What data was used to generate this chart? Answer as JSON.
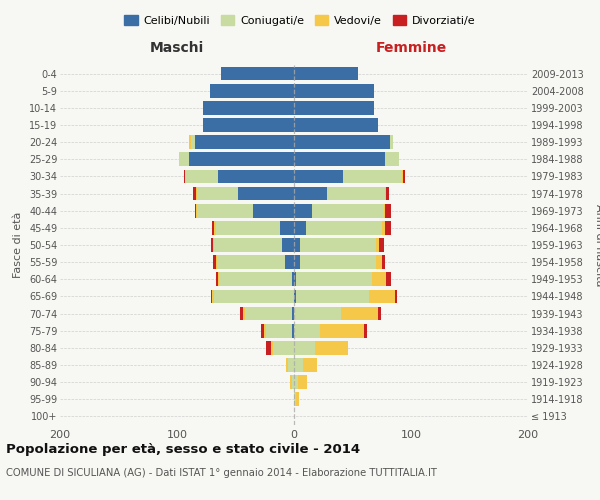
{
  "age_groups": [
    "100+",
    "95-99",
    "90-94",
    "85-89",
    "80-84",
    "75-79",
    "70-74",
    "65-69",
    "60-64",
    "55-59",
    "50-54",
    "45-49",
    "40-44",
    "35-39",
    "30-34",
    "25-29",
    "20-24",
    "15-19",
    "10-14",
    "5-9",
    "0-4"
  ],
  "birth_years": [
    "≤ 1913",
    "1914-1918",
    "1919-1923",
    "1924-1928",
    "1929-1933",
    "1934-1938",
    "1939-1943",
    "1944-1948",
    "1949-1953",
    "1954-1958",
    "1959-1963",
    "1964-1968",
    "1969-1973",
    "1974-1978",
    "1979-1983",
    "1984-1988",
    "1989-1993",
    "1994-1998",
    "1999-2003",
    "2004-2008",
    "2009-2013"
  ],
  "males": {
    "celibi": [
      0,
      0,
      0,
      0,
      0,
      2,
      2,
      0,
      2,
      8,
      10,
      12,
      35,
      48,
      65,
      90,
      85,
      78,
      78,
      72,
      62
    ],
    "coniugati": [
      0,
      0,
      2,
      5,
      18,
      22,
      40,
      68,
      62,
      58,
      58,
      55,
      48,
      35,
      28,
      8,
      3,
      0,
      0,
      0,
      0
    ],
    "vedovi": [
      0,
      0,
      1,
      2,
      2,
      2,
      2,
      2,
      1,
      1,
      1,
      1,
      1,
      1,
      0,
      0,
      2,
      0,
      0,
      0,
      0
    ],
    "divorziati": [
      0,
      0,
      0,
      0,
      4,
      2,
      2,
      1,
      2,
      2,
      2,
      2,
      1,
      2,
      1,
      0,
      0,
      0,
      0,
      0,
      0
    ]
  },
  "females": {
    "nubili": [
      0,
      0,
      0,
      0,
      0,
      0,
      0,
      2,
      2,
      5,
      5,
      10,
      15,
      28,
      42,
      78,
      82,
      72,
      68,
      68,
      55
    ],
    "coniugate": [
      0,
      2,
      3,
      8,
      18,
      22,
      40,
      62,
      65,
      65,
      65,
      65,
      62,
      50,
      50,
      12,
      3,
      0,
      0,
      0,
      0
    ],
    "vedove": [
      0,
      2,
      8,
      12,
      28,
      38,
      32,
      22,
      12,
      5,
      3,
      3,
      1,
      1,
      1,
      0,
      0,
      0,
      0,
      0,
      0
    ],
    "divorziate": [
      0,
      0,
      0,
      0,
      0,
      2,
      2,
      2,
      4,
      3,
      4,
      5,
      5,
      2,
      2,
      0,
      0,
      0,
      0,
      0,
      0
    ]
  },
  "colors": {
    "celibi_nubili": "#3a6ea5",
    "coniugati": "#c8dba0",
    "vedovi": "#f5c84a",
    "divorziati": "#c82020"
  },
  "xlim": 200,
  "title": "Popolazione per età, sesso e stato civile - 2014",
  "subtitle": "COMUNE DI SICULIANA (AG) - Dati ISTAT 1° gennaio 2014 - Elaborazione TUTTITALIA.IT",
  "ylabel": "Fasce di età",
  "ylabel_right": "Anni di nascita",
  "xlabel_left": "Maschi",
  "xlabel_right": "Femmine",
  "background_color": "#f7f7f3",
  "grid_color": "#cccccc"
}
